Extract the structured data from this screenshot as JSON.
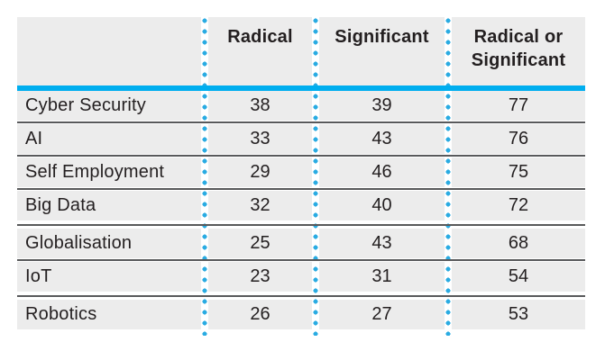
{
  "figure": {
    "columns": [
      "Radical",
      "Significant",
      "Radical or Significant"
    ],
    "rows": [
      {
        "label": "Cyber Security",
        "values": [
          "38",
          "39",
          "77"
        ]
      },
      {
        "label": "AI",
        "values": [
          "33",
          "43",
          "76"
        ]
      },
      {
        "label": "Self Employment",
        "values": [
          "29",
          "46",
          "75"
        ]
      },
      {
        "label": "Big Data",
        "values": [
          "32",
          "40",
          "72"
        ]
      },
      {
        "label": "Globalisation",
        "values": [
          "25",
          "43",
          "68"
        ]
      },
      {
        "label": "IoT",
        "values": [
          "23",
          "31",
          "54"
        ]
      },
      {
        "label": "Robotics",
        "values": [
          "26",
          "27",
          "53"
        ]
      }
    ],
    "colors": {
      "accent_cyan_rule": "#00aeef",
      "accent_cyan_dots": "#29abe2",
      "row_background": "#ececec",
      "separator_line": "#58595b",
      "text": "#231f20",
      "page_background": "#ffffff"
    }
  },
  "chart_data": {
    "type": "table",
    "title": "",
    "columns": [
      "",
      "Radical",
      "Significant",
      "Radical or Significant"
    ],
    "rows": [
      [
        "Cyber Security",
        38,
        39,
        77
      ],
      [
        "AI",
        33,
        43,
        76
      ],
      [
        "Self Employment",
        29,
        46,
        75
      ],
      [
        "Big Data",
        32,
        40,
        72
      ],
      [
        "Globalisation",
        25,
        43,
        68
      ],
      [
        "IoT",
        23,
        31,
        54
      ],
      [
        "Robotics",
        26,
        27,
        53
      ]
    ],
    "layout": {
      "grid": "dotted vertical column dividers, solid dark row separators",
      "header_rule": "thick cyan line under header",
      "value_columns_sorted_by": "Radical or Significant descending"
    }
  }
}
